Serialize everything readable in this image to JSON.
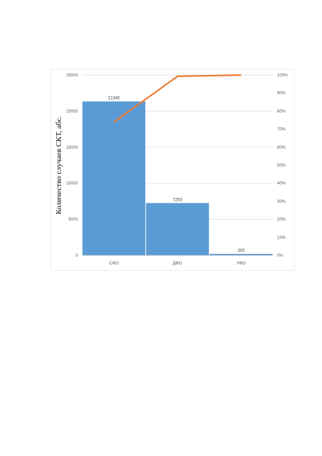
{
  "chart_data": {
    "type": "bar",
    "categories": [
      "СФО",
      "ДФО",
      "УФО"
    ],
    "series": [
      {
        "values": [
          21345,
          7253,
          205
        ],
        "color": "#5b9bd5"
      },
      {
        "values": [
          73.9,
          99.3,
          100
        ],
        "color": "#ed7d31",
        "type": "line",
        "axis": "right"
      }
    ],
    "data_labels": [
      "21345",
      "7253",
      "205"
    ],
    "ylabel": "Количество случаев СКТ, абс.",
    "ylim": [
      0,
      25000
    ],
    "y_ticks": [
      0,
      5000,
      10000,
      15000,
      20000,
      25000
    ],
    "y2lim": [
      0,
      100
    ],
    "y2_ticks": [
      "0%",
      "10%",
      "20%",
      "30%",
      "40%",
      "50%",
      "60%",
      "70%",
      "80%",
      "90%",
      "100%"
    ],
    "grid": true
  }
}
